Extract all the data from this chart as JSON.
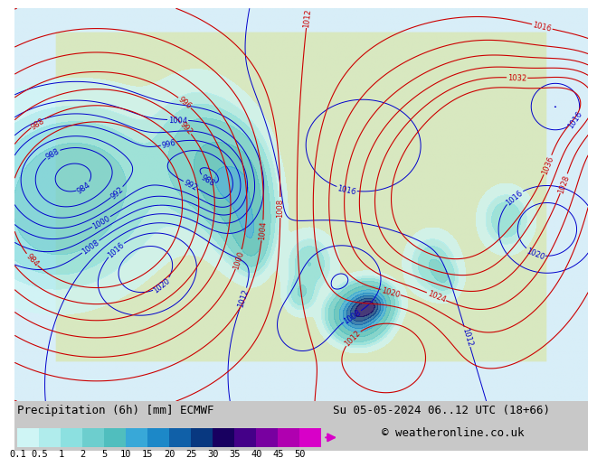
{
  "title_label": "Precipitation (6h) [mm] ECMWF",
  "date_label": "Su 05-05-2024 06..12 UTC (18+66)",
  "copyright_label": "© weatheronline.co.uk",
  "colorbar_levels": [
    0.1,
    0.5,
    1,
    2,
    5,
    10,
    15,
    20,
    25,
    30,
    35,
    40,
    45,
    50
  ],
  "colorbar_colors": [
    "#cff5f5",
    "#b0ecec",
    "#8ce0e0",
    "#6dcece",
    "#50bebe",
    "#38a8d8",
    "#1c88c8",
    "#1060a8",
    "#083880",
    "#180060",
    "#440088",
    "#7800a0",
    "#b000b0",
    "#d800c8"
  ],
  "ocean_color": "#d8eef8",
  "land_color": "#d8e8c0",
  "precip_light_color": "#a0d8f0",
  "bg_color": "#ffffff",
  "bottom_bar_color": "#c8c8c8",
  "colorbar_arrow_color": "#d800c8",
  "blue_contour_color": "#0000cc",
  "red_contour_color": "#cc0000",
  "label_fontsize": 9,
  "tick_fontsize": 7.5,
  "contour_fontsize": 6
}
